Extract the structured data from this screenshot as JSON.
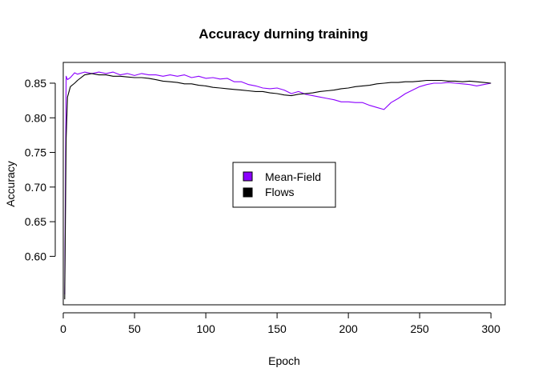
{
  "chart_data": {
    "type": "line",
    "title": "Accuracy durning training",
    "xlabel": "Epoch",
    "ylabel": "Accuracy",
    "xlim": [
      0,
      310
    ],
    "ylim": [
      0.53,
      0.88
    ],
    "xticks": [
      0,
      50,
      100,
      150,
      200,
      250,
      300
    ],
    "yticks": [
      0.6,
      0.65,
      0.7,
      0.75,
      0.8,
      0.85
    ],
    "grid": false,
    "legend_position": "center",
    "series": [
      {
        "name": "Mean-Field",
        "color": "#8B00FF",
        "points": [
          [
            1,
            0.545
          ],
          [
            2,
            0.86
          ],
          [
            3,
            0.855
          ],
          [
            5,
            0.858
          ],
          [
            8,
            0.865
          ],
          [
            10,
            0.863
          ],
          [
            15,
            0.866
          ],
          [
            20,
            0.864
          ],
          [
            25,
            0.866
          ],
          [
            30,
            0.864
          ],
          [
            35,
            0.866
          ],
          [
            40,
            0.862
          ],
          [
            45,
            0.864
          ],
          [
            50,
            0.861
          ],
          [
            55,
            0.864
          ],
          [
            60,
            0.862
          ],
          [
            65,
            0.862
          ],
          [
            70,
            0.86
          ],
          [
            75,
            0.862
          ],
          [
            80,
            0.86
          ],
          [
            85,
            0.862
          ],
          [
            90,
            0.858
          ],
          [
            95,
            0.86
          ],
          [
            100,
            0.857
          ],
          [
            105,
            0.858
          ],
          [
            110,
            0.856
          ],
          [
            115,
            0.857
          ],
          [
            120,
            0.852
          ],
          [
            125,
            0.852
          ],
          [
            130,
            0.848
          ],
          [
            135,
            0.846
          ],
          [
            140,
            0.843
          ],
          [
            145,
            0.842
          ],
          [
            150,
            0.843
          ],
          [
            155,
            0.84
          ],
          [
            160,
            0.835
          ],
          [
            165,
            0.838
          ],
          [
            170,
            0.834
          ],
          [
            175,
            0.832
          ],
          [
            180,
            0.83
          ],
          [
            185,
            0.828
          ],
          [
            190,
            0.826
          ],
          [
            195,
            0.823
          ],
          [
            200,
            0.823
          ],
          [
            205,
            0.822
          ],
          [
            210,
            0.822
          ],
          [
            215,
            0.818
          ],
          [
            220,
            0.815
          ],
          [
            225,
            0.812
          ],
          [
            230,
            0.822
          ],
          [
            235,
            0.828
          ],
          [
            240,
            0.835
          ],
          [
            245,
            0.84
          ],
          [
            250,
            0.845
          ],
          [
            255,
            0.848
          ],
          [
            260,
            0.85
          ],
          [
            265,
            0.85
          ],
          [
            270,
            0.851
          ],
          [
            275,
            0.85
          ],
          [
            280,
            0.849
          ],
          [
            285,
            0.848
          ],
          [
            290,
            0.846
          ],
          [
            295,
            0.848
          ],
          [
            300,
            0.85
          ]
        ]
      },
      {
        "name": "Flows",
        "color": "#000000",
        "points": [
          [
            1,
            0.538
          ],
          [
            2,
            0.77
          ],
          [
            3,
            0.83
          ],
          [
            5,
            0.845
          ],
          [
            8,
            0.85
          ],
          [
            10,
            0.854
          ],
          [
            15,
            0.862
          ],
          [
            20,
            0.864
          ],
          [
            25,
            0.862
          ],
          [
            30,
            0.862
          ],
          [
            35,
            0.86
          ],
          [
            40,
            0.86
          ],
          [
            45,
            0.859
          ],
          [
            50,
            0.858
          ],
          [
            55,
            0.858
          ],
          [
            60,
            0.857
          ],
          [
            65,
            0.855
          ],
          [
            70,
            0.853
          ],
          [
            75,
            0.852
          ],
          [
            80,
            0.851
          ],
          [
            85,
            0.849
          ],
          [
            90,
            0.849
          ],
          [
            95,
            0.847
          ],
          [
            100,
            0.846
          ],
          [
            105,
            0.844
          ],
          [
            110,
            0.843
          ],
          [
            115,
            0.842
          ],
          [
            120,
            0.841
          ],
          [
            125,
            0.84
          ],
          [
            130,
            0.839
          ],
          [
            135,
            0.838
          ],
          [
            140,
            0.838
          ],
          [
            145,
            0.836
          ],
          [
            150,
            0.835
          ],
          [
            155,
            0.833
          ],
          [
            160,
            0.832
          ],
          [
            165,
            0.834
          ],
          [
            170,
            0.835
          ],
          [
            175,
            0.836
          ],
          [
            180,
            0.838
          ],
          [
            185,
            0.839
          ],
          [
            190,
            0.84
          ],
          [
            195,
            0.842
          ],
          [
            200,
            0.843
          ],
          [
            205,
            0.845
          ],
          [
            210,
            0.846
          ],
          [
            215,
            0.847
          ],
          [
            220,
            0.849
          ],
          [
            225,
            0.85
          ],
          [
            230,
            0.851
          ],
          [
            235,
            0.851
          ],
          [
            240,
            0.852
          ],
          [
            245,
            0.852
          ],
          [
            250,
            0.853
          ],
          [
            255,
            0.854
          ],
          [
            260,
            0.854
          ],
          [
            265,
            0.854
          ],
          [
            270,
            0.853
          ],
          [
            275,
            0.853
          ],
          [
            280,
            0.852
          ],
          [
            285,
            0.853
          ],
          [
            290,
            0.852
          ],
          [
            295,
            0.851
          ],
          [
            300,
            0.85
          ]
        ]
      }
    ]
  }
}
